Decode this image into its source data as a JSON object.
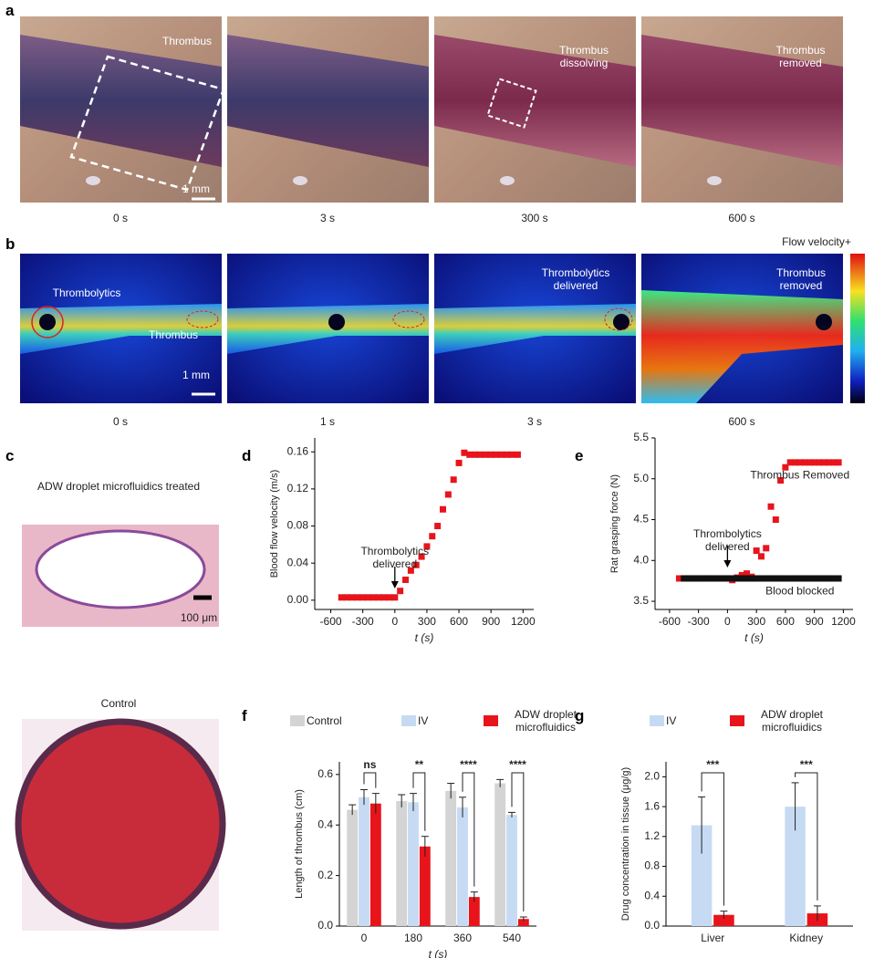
{
  "panel_labels": [
    "a",
    "b",
    "c",
    "d",
    "e",
    "f",
    "g"
  ],
  "photos_a": {
    "captions": [
      "0 s",
      "3 s",
      "300 s",
      "600 s"
    ],
    "annotations": [
      "Thrombus",
      "Thrombus dissolving",
      "Thrombus removed"
    ],
    "scale_bar": "1 mm"
  },
  "photos_b": {
    "captions": [
      "0 s",
      "1 s",
      "3 s",
      "600 s"
    ],
    "annotations": [
      "Thrombolytics",
      "Thrombus",
      "Thrombolytics delivered",
      "Thrombus removed"
    ],
    "scale_bar": "1 mm",
    "colorbar_label": "Flow velocity+"
  },
  "photos_c": {
    "titles": [
      "ADW droplet microfluidics treated",
      "Control"
    ],
    "scale_bar": "100 μm"
  },
  "chart_data": [
    {
      "type": "scatter",
      "ylabel": "Blood flow velocity (m/s)",
      "xlabel": "t (s)",
      "annotation": {
        "text": "Thrombolytics delivered",
        "x": 0
      },
      "xlim": [
        -750,
        1300
      ],
      "xticks": [
        -600,
        -300,
        0,
        300,
        600,
        900,
        1200
      ],
      "ylim": [
        -0.01,
        0.175
      ],
      "yticks": [
        {
          "value": 0,
          "label": "0.00"
        },
        {
          "value": 0.04,
          "label": "0.04"
        },
        {
          "value": 0.08,
          "label": "0.08"
        },
        {
          "value": 0.12,
          "label": "0.12"
        },
        {
          "value": 0.16,
          "label": "0.16"
        }
      ],
      "series": [
        {
          "color": "#e8141b",
          "x": [
            -500,
            -450,
            -400,
            -350,
            -300,
            -250,
            -200,
            -150,
            -100,
            -50,
            0,
            50,
            100,
            150,
            200,
            250,
            300,
            350,
            400,
            450,
            500,
            550,
            600,
            650,
            700,
            750,
            800,
            850,
            900,
            950,
            1000,
            1050,
            1100,
            1150
          ],
          "values": [
            0.003,
            0.003,
            0.003,
            0.003,
            0.003,
            0.003,
            0.003,
            0.003,
            0.003,
            0.003,
            0.003,
            0.01,
            0.022,
            0.032,
            0.038,
            0.047,
            0.058,
            0.069,
            0.08,
            0.098,
            0.114,
            0.13,
            0.148,
            0.159,
            0.157,
            0.157,
            0.157,
            0.157,
            0.157,
            0.157,
            0.157,
            0.157,
            0.157,
            0.157
          ]
        }
      ]
    },
    {
      "type": "scatter",
      "ylabel": "Rat grasping force (N)",
      "xlabel": "t (s)",
      "annotation": {
        "text": "Thrombolytics delivered",
        "x": 0
      },
      "xlim": [
        -750,
        1300
      ],
      "xticks": [
        -600,
        -300,
        0,
        300,
        600,
        900,
        1200
      ],
      "ylim": [
        3.4,
        5.5
      ],
      "yticks": [
        3.5,
        {
          "value": 4,
          "label": "4.0"
        },
        4.5,
        {
          "value": 5,
          "label": "5.0"
        },
        5.5
      ],
      "series": [
        {
          "name": "Thrombus Removed",
          "color": "#e8141b",
          "x": [
            -500,
            -450,
            -400,
            -350,
            -300,
            -250,
            -200,
            -150,
            -100,
            -50,
            0,
            50,
            100,
            150,
            200,
            250,
            300,
            350,
            400,
            450,
            500,
            550,
            600,
            650,
            700,
            750,
            800,
            850,
            900,
            950,
            1000,
            1050,
            1100,
            1150
          ],
          "values": [
            3.78,
            3.78,
            3.78,
            3.78,
            3.78,
            3.78,
            3.78,
            3.78,
            3.78,
            3.78,
            3.78,
            3.76,
            3.79,
            3.82,
            3.84,
            3.8,
            4.12,
            4.05,
            4.15,
            4.66,
            4.5,
            4.98,
            5.14,
            5.2,
            5.2,
            5.2,
            5.2,
            5.2,
            5.2,
            5.2,
            5.2,
            5.2,
            5.2,
            5.2
          ]
        },
        {
          "name": "Blood blocked",
          "color": "#111111",
          "x": [
            -450,
            -400,
            -350,
            -300,
            -250,
            -200,
            -150,
            -100,
            -50,
            0,
            50,
            100,
            150,
            200,
            250,
            300,
            350,
            400,
            450,
            500,
            550,
            600,
            650,
            700,
            750,
            800,
            850,
            900,
            950,
            1000,
            1050,
            1100,
            1150
          ],
          "values": [
            3.78,
            3.78,
            3.78,
            3.78,
            3.78,
            3.78,
            3.78,
            3.78,
            3.78,
            3.78,
            3.78,
            3.78,
            3.78,
            3.78,
            3.78,
            3.78,
            3.78,
            3.78,
            3.78,
            3.78,
            3.78,
            3.78,
            3.78,
            3.78,
            3.78,
            3.78,
            3.78,
            3.78,
            3.78,
            3.78,
            3.78,
            3.78,
            3.78
          ]
        }
      ]
    },
    {
      "type": "bar",
      "ylabel": "Length of  thrombus (cm)",
      "xlabel": "t (s)",
      "categories": [
        "0",
        "180",
        "360",
        "540"
      ],
      "ylim": [
        0,
        0.65
      ],
      "yticks": [
        {
          "value": 0,
          "label": "0.0"
        },
        0.2,
        0.4,
        0.6
      ],
      "series": [
        {
          "name": "Control",
          "color": "#d4d4d4",
          "values": [
            0.46,
            0.495,
            0.535,
            0.565
          ],
          "errors": [
            0.02,
            0.025,
            0.03,
            0.015
          ]
        },
        {
          "name": "IV",
          "color": "#c6dbf3",
          "values": [
            0.51,
            0.49,
            0.47,
            0.44
          ],
          "errors": [
            0.03,
            0.035,
            0.04,
            0.01
          ]
        },
        {
          "name": "ADW droplet microfluidics",
          "color": "#e8141b",
          "values": [
            0.485,
            0.315,
            0.115,
            0.028
          ],
          "errors": [
            0.04,
            0.04,
            0.02,
            0.008
          ]
        }
      ],
      "significance": [
        "ns",
        "**",
        "****",
        "****"
      ]
    },
    {
      "type": "bar",
      "ylabel": "Drug concentration in tissue (μg/g)",
      "categories": [
        "Liver",
        "Kidney"
      ],
      "ylim": [
        0,
        2.2
      ],
      "yticks": [
        {
          "value": 0,
          "label": "0.0"
        },
        0.4,
        0.8,
        1.2,
        1.6,
        {
          "value": 2,
          "label": "2.0"
        }
      ],
      "series": [
        {
          "name": "IV",
          "color": "#c6dbf3",
          "values": [
            1.35,
            1.6
          ],
          "errors": [
            0.38,
            0.32
          ]
        },
        {
          "name": "ADW droplet microfluidics",
          "color": "#e8141b",
          "values": [
            0.15,
            0.17
          ],
          "errors": [
            0.05,
            0.1
          ]
        }
      ],
      "significance": [
        "***",
        "***"
      ]
    }
  ]
}
